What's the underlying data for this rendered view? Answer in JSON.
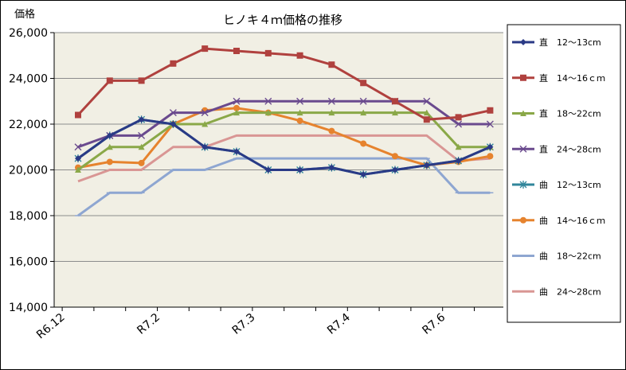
{
  "chart_data": {
    "type": "line",
    "title": "ヒノキ４ｍ価格の推移",
    "ylabel": "価格",
    "xlabel": "",
    "ylim": [
      14000,
      26000
    ],
    "ytick_step": 2000,
    "ytick_labels": [
      "14,000",
      "16,000",
      "18,000",
      "20,000",
      "22,000",
      "24,000",
      "26,000"
    ],
    "x_tick_labels": [
      "R6.12",
      "R7.2",
      "R7.3",
      "R7.4",
      "R7.6"
    ],
    "x_tick_positions": [
      0,
      3,
      6,
      9,
      12
    ],
    "grid": true,
    "legend_position": "right",
    "series": [
      {
        "name": "直　12～13cm",
        "color": "#2a3a86",
        "marker": "diamond",
        "values": [
          20500,
          21500,
          22200,
          22000,
          21000,
          20800,
          20000,
          20000,
          20100,
          19800,
          20000,
          20200,
          20400,
          21000
        ]
      },
      {
        "name": "直　14～16ｃｍ",
        "color": "#b0413e",
        "marker": "square",
        "values": [
          22400,
          23900,
          23900,
          24650,
          25300,
          25200,
          25100,
          25000,
          24600,
          23800,
          23000,
          22200,
          22300,
          22600
        ]
      },
      {
        "name": "直　18～22cm",
        "color": "#8aa848",
        "marker": "triangle",
        "values": [
          20000,
          21000,
          21000,
          22000,
          22000,
          22500,
          22500,
          22500,
          22500,
          22500,
          22500,
          22500,
          21000,
          21000
        ]
      },
      {
        "name": "直　24～28cm",
        "color": "#6a4a8e",
        "marker": "x",
        "values": [
          21000,
          21500,
          21500,
          22500,
          22500,
          23000,
          23000,
          23000,
          23000,
          23000,
          23000,
          23000,
          22000,
          22000
        ]
      },
      {
        "name": "曲　12～13cm",
        "color": "#31869b",
        "marker": "star",
        "values": [
          20500,
          21500,
          22200,
          22000,
          21000,
          20800,
          20000,
          20000,
          20100,
          19800,
          20000,
          20200,
          20400,
          21000
        ]
      },
      {
        "name": "曲　14～16ｃｍ",
        "color": "#e6832e",
        "marker": "circle",
        "values": [
          20100,
          20350,
          20300,
          22000,
          22600,
          22700,
          22500,
          22150,
          21700,
          21150,
          20600,
          20200,
          20350,
          20600
        ]
      },
      {
        "name": "曲　18～22cm",
        "color": "#8ea6d1",
        "marker": "dash",
        "values": [
          18000,
          19000,
          19000,
          20000,
          20000,
          20500,
          20500,
          20500,
          20500,
          20500,
          20500,
          20500,
          19000,
          19000
        ]
      },
      {
        "name": "曲　24～28cm",
        "color": "#d99694",
        "marker": "none",
        "values": [
          19500,
          20000,
          20000,
          21000,
          21000,
          21500,
          21500,
          21500,
          21500,
          21500,
          21500,
          21500,
          20400,
          20500
        ]
      }
    ]
  }
}
